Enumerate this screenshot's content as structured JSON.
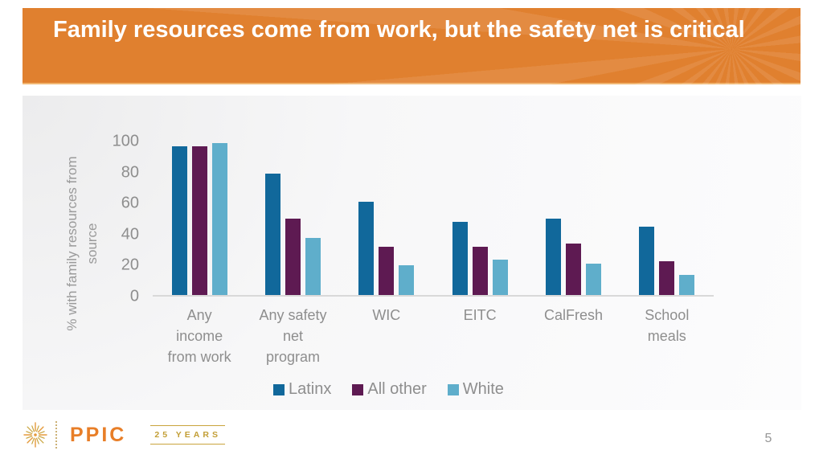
{
  "slide": {
    "title": "Family resources come from work, but the safety net is critical",
    "page_number": "5"
  },
  "footer": {
    "logo_text": "PPIC",
    "anniversary_label": "25 YEARS"
  },
  "colors": {
    "header_orange": "#E0802F",
    "ppic_orange": "#E87E27",
    "gold": "#C9A43D",
    "axis_line": "#D9D9D9",
    "chart_text_gray": "#8E8E8E",
    "series_latinx": "#11689B",
    "series_all_other": "#5E1A52",
    "series_white": "#5FAECB"
  },
  "chart_data": {
    "type": "bar",
    "title": "",
    "xlabel": "",
    "ylabel": "% with family resources from\nsource",
    "ylim": [
      0,
      100
    ],
    "yticks": [
      0,
      20,
      40,
      60,
      80,
      100
    ],
    "grid": false,
    "legend_position": "bottom",
    "categories": [
      "Any income from work",
      "Any safety net program",
      "WIC",
      "EITC",
      "CalFresh",
      "School meals"
    ],
    "category_label_lines": [
      [
        "Any",
        "income",
        "from work"
      ],
      [
        "Any safety",
        "net",
        "program"
      ],
      [
        "WIC"
      ],
      [
        "EITC"
      ],
      [
        "CalFresh"
      ],
      [
        "School",
        "meals"
      ]
    ],
    "series": [
      {
        "name": "Latinx",
        "color": "#11689B",
        "values": [
          96,
          78,
          60,
          47,
          49,
          44
        ]
      },
      {
        "name": "All other",
        "color": "#5E1A52",
        "values": [
          96,
          49,
          31,
          31,
          33,
          22
        ]
      },
      {
        "name": "White",
        "color": "#5FAECB",
        "values": [
          98,
          37,
          19,
          23,
          20,
          13
        ]
      }
    ]
  }
}
